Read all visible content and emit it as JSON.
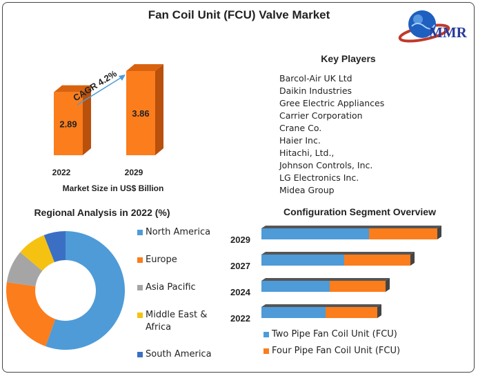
{
  "title": "Fan Coil Unit (FCU) Valve Market",
  "logo": {
    "text": "MMR"
  },
  "market_size": {
    "cagr_label": "CAGR 4.2%",
    "caption": "Market Size in US$ Billion"
  },
  "key_players": {
    "title": "Key Players",
    "items": [
      "Barcol-Air UK Ltd",
      "Daikin Industries",
      "Gree Electric Appliances",
      "Carrier Corporation",
      "Crane Co.",
      "Haier Inc.",
      "Hitachi, Ltd.,",
      "Johnson Controls, Inc.",
      "LG Electronics Inc.",
      "Midea Group"
    ]
  },
  "regional": {
    "title": "Regional Analysis in 2022 (%)"
  },
  "configuration": {
    "title": "Configuration Segment Overview"
  },
  "colors": {
    "orange": "#fb7d1c",
    "blue": "#4e9bd8",
    "gray": "#a5a5a5",
    "yellow": "#f5c211",
    "dark_blue": "#3b6fc4"
  },
  "chart_data": [
    {
      "type": "bar",
      "categories": [
        "2022",
        "2029"
      ],
      "values": [
        2.89,
        3.86
      ],
      "xlabel": "Market Size in US$ Billion",
      "style": "3d"
    },
    {
      "type": "pie",
      "title": "Regional Analysis in 2022 (%)",
      "donut": true,
      "labels": [
        "North America",
        "Europe",
        "Asia Pacific",
        "Middle East & Africa",
        "South America"
      ],
      "values": [
        56,
        22,
        9,
        8,
        6
      ],
      "colors": [
        "#4e9bd8",
        "#fb7d1c",
        "#a5a5a5",
        "#f5c211",
        "#3b6fc4"
      ],
      "legend": "right"
    },
    {
      "type": "bar",
      "orientation": "horizontal",
      "stacked": true,
      "title": "Configuration Segment Overview",
      "categories": [
        "2029",
        "2027",
        "2024",
        "2022"
      ],
      "series": [
        {
          "name": "Two Pipe Fan Coil Unit (FCU)",
          "values": [
            5.2,
            4.0,
            3.3,
            3.1
          ]
        },
        {
          "name": "Four Pipe Fan Coil Unit (FCU)",
          "values": [
            3.3,
            3.2,
            2.7,
            2.5
          ]
        }
      ],
      "legend": "bottom"
    }
  ]
}
